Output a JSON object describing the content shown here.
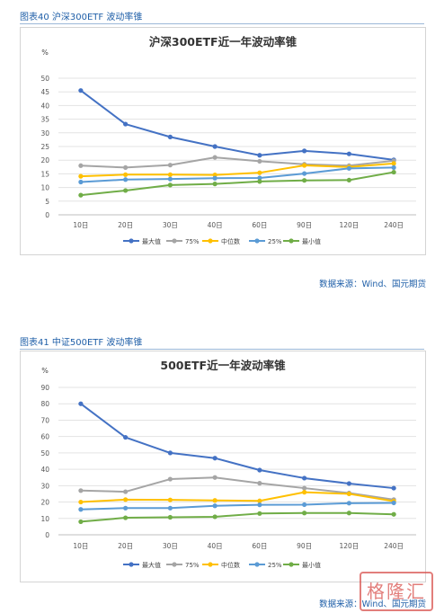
{
  "charts": [
    {
      "fig_label": "图表40 沪深300ETF 波动率锥",
      "source": "数据来源：Wind、国元期货"
    },
    {
      "fig_label": "图表41 中证500ETF 波动率锥",
      "source": "数据来源：Wind、国元期货"
    }
  ],
  "chart_data": [
    {
      "type": "line",
      "title": "沪深300ETF近一年波动率锥",
      "ylabel": "%",
      "xlabel": "",
      "categories": [
        "10日",
        "20日",
        "30日",
        "40日",
        "60日",
        "90日",
        "120日",
        "240日"
      ],
      "ylim": [
        0,
        50
      ],
      "yticks": [
        0,
        5,
        10,
        15,
        20,
        25,
        30,
        35,
        40,
        45,
        50
      ],
      "grid": true,
      "legend": "bottom",
      "series": [
        {
          "name": "最大值",
          "color": "#4472c4",
          "values": [
            45.5,
            33.2,
            28.5,
            25.0,
            21.8,
            23.4,
            22.3,
            20.1
          ]
        },
        {
          "name": "75%",
          "color": "#a5a5a5",
          "values": [
            18.0,
            17.3,
            18.2,
            21.0,
            19.6,
            18.5,
            18.0,
            19.8
          ]
        },
        {
          "name": "中位数",
          "color": "#ffc000",
          "values": [
            14.1,
            14.7,
            14.7,
            14.6,
            15.4,
            18.1,
            17.5,
            18.8
          ]
        },
        {
          "name": "25%",
          "color": "#5b9bd5",
          "values": [
            12.0,
            12.9,
            13.1,
            13.4,
            13.5,
            15.1,
            17.0,
            17.3
          ]
        },
        {
          "name": "最小值",
          "color": "#70ad47",
          "values": [
            7.2,
            8.9,
            10.9,
            11.3,
            12.2,
            12.6,
            12.7,
            15.6
          ]
        }
      ]
    },
    {
      "type": "line",
      "title": "500ETF近一年波动率锥",
      "ylabel": "%",
      "xlabel": "",
      "categories": [
        "10日",
        "20日",
        "30日",
        "40日",
        "60日",
        "90日",
        "120日",
        "240日"
      ],
      "ylim": [
        0,
        90
      ],
      "yticks": [
        0,
        10,
        20,
        30,
        40,
        50,
        60,
        70,
        80,
        90
      ],
      "grid": true,
      "legend": "bottom",
      "series": [
        {
          "name": "最大值",
          "color": "#4472c4",
          "values": [
            80.0,
            59.5,
            50.0,
            46.8,
            39.5,
            34.6,
            31.3,
            28.5
          ]
        },
        {
          "name": "75%",
          "color": "#a5a5a5",
          "values": [
            27.0,
            26.3,
            34.0,
            35.0,
            31.5,
            28.5,
            25.5,
            21.5
          ]
        },
        {
          "name": "中位数",
          "color": "#ffc000",
          "values": [
            20.0,
            21.5,
            21.3,
            21.0,
            20.7,
            26.0,
            25.0,
            20.5
          ]
        },
        {
          "name": "25%",
          "color": "#5b9bd5",
          "values": [
            15.5,
            16.3,
            16.3,
            17.7,
            18.3,
            18.4,
            19.3,
            19.5
          ]
        },
        {
          "name": "最小值",
          "color": "#70ad47",
          "values": [
            8.0,
            10.4,
            10.7,
            11.0,
            13.0,
            13.3,
            13.3,
            12.5
          ]
        }
      ]
    }
  ],
  "stamp_text": "格隆汇"
}
